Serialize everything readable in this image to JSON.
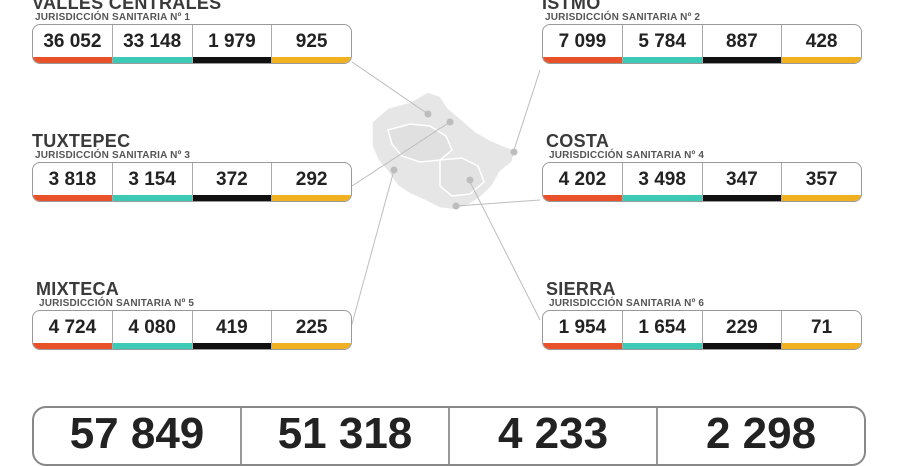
{
  "regions": [
    {
      "name": "VALLES CENTRALES",
      "sub": "JURISDICCIÓN SANITARIA Nº 1",
      "values": [
        "36 052",
        "33 148",
        "1 979",
        "925"
      ]
    },
    {
      "name": "ISTMO",
      "sub": "JURISDICCIÓN SANITARIA Nº 2",
      "values": [
        "7 099",
        "5 784",
        "887",
        "428"
      ]
    },
    {
      "name": "TUXTEPEC",
      "sub": "JURISDICCIÓN SANITARIA Nº 3",
      "values": [
        "3 818",
        "3 154",
        "372",
        "292"
      ]
    },
    {
      "name": "COSTA",
      "sub": "JURISDICCIÓN SANITARIA Nº 4",
      "values": [
        "4 202",
        "3 498",
        "347",
        "357"
      ]
    },
    {
      "name": "MIXTECA",
      "sub": "JURISDICCIÓN SANITARIA Nº 5",
      "values": [
        "4 724",
        "4 080",
        "419",
        "225"
      ]
    },
    {
      "name": "SIERRA",
      "sub": "JURISDICCIÓN SANITARIA Nº 6",
      "values": [
        "1 954",
        "1 654",
        "229",
        "71"
      ]
    }
  ],
  "totals": [
    "57 849",
    "51 318",
    "4 233",
    "2 298"
  ],
  "colors": {
    "orange": "#e8512a",
    "teal": "#3cc9b5",
    "black": "#111111",
    "yellow": "#f0b020",
    "map_fill": "#e6e6e6"
  }
}
